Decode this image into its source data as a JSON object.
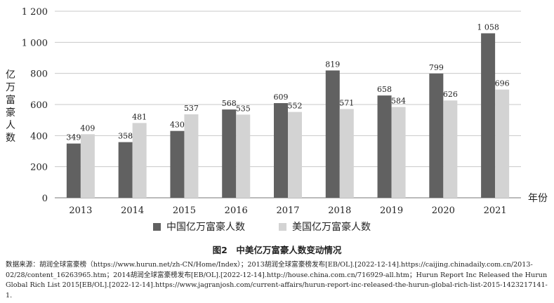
{
  "chart_data": {
    "type": "bar",
    "title": "",
    "categories": [
      "2013",
      "2014",
      "2015",
      "2016",
      "2017",
      "2018",
      "2019",
      "2020",
      "2021"
    ],
    "series": [
      {
        "name": "中国亿万富豪人数",
        "color": "#616161",
        "values": [
          349,
          358,
          430,
          568,
          609,
          819,
          658,
          799,
          1058
        ]
      },
      {
        "name": "美国亿万富豪人数",
        "color": "#d3d3d3",
        "values": [
          409,
          481,
          537,
          535,
          552,
          571,
          584,
          626,
          696
        ]
      }
    ],
    "value_labels": {
      "china": [
        "349",
        "358",
        "430",
        "568",
        "609",
        "819",
        "658",
        "799",
        "1 058"
      ],
      "us": [
        "409",
        "481",
        "537",
        "535",
        "552",
        "571",
        "584",
        "626",
        "696"
      ]
    },
    "ylim": [
      0,
      1200
    ],
    "yticks": [
      0,
      200,
      400,
      600,
      800,
      1000,
      1200
    ],
    "ytick_labels": [
      "0",
      "200",
      "400",
      "600",
      "800",
      "1 000",
      "1 200"
    ],
    "ylabel": "亿万富豪人数",
    "xlabel": "年份",
    "grid": true,
    "legend_position": "bottom"
  },
  "legend": {
    "china_label": "中国亿万富豪人数",
    "us_label": "美国亿万富豪人数"
  },
  "figure_caption": "图2　中美亿万富豪人数变动情况",
  "source_text": "数据来源：胡润全球富豪榜（https://www.hurun.net/zh-CN/Home/Index）；2013胡润全球富豪榜发布[EB/OL].[2022-12-14].https://caijing.chinadaily.com.cn/2013-02/28/content_16263965.htm；2014胡润全球富豪榜发布[EB/OL].[2022-12-14].http://house.china.com.cn/716929-all.htm；Hurun Report Inc Released the Hurun Global Rich List 2015[EB/OL].[2022-12-14].https://www.jagranjosh.com/current-affairs/hurun-report-inc-released-the-hurun-global-rich-list-2015-1423217141-1."
}
